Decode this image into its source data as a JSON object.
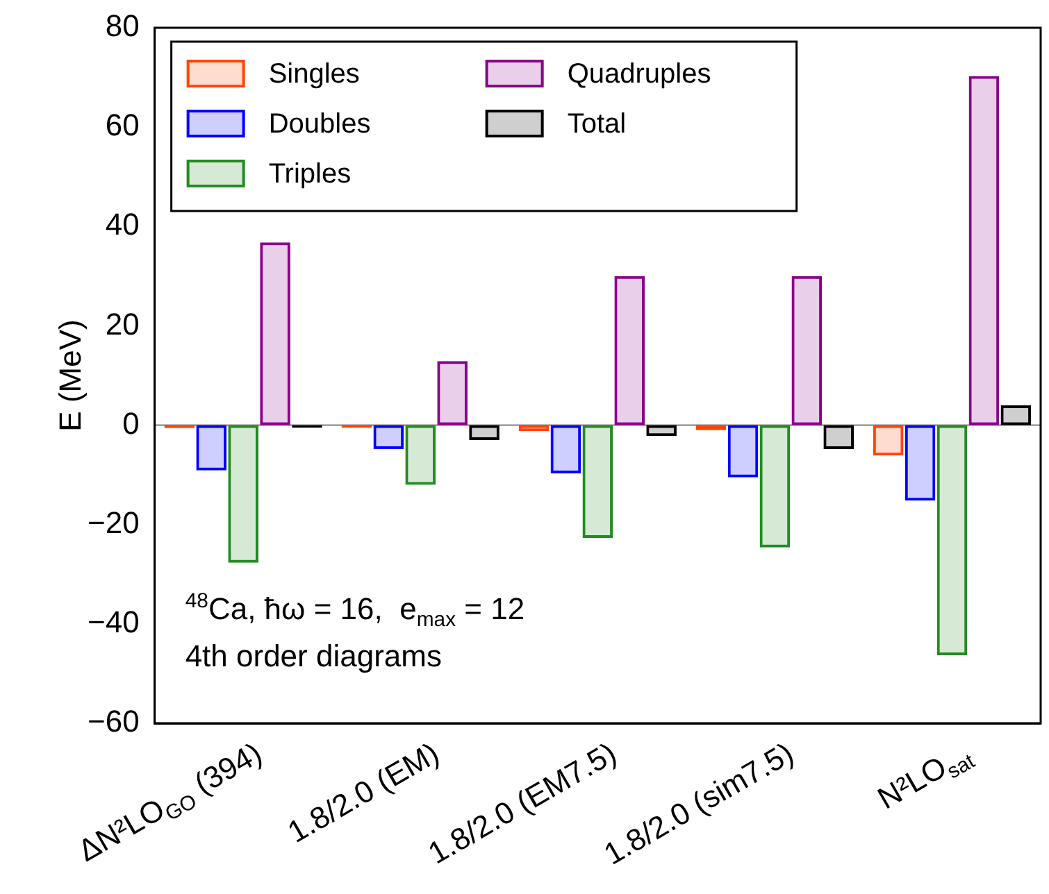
{
  "chart_data": {
    "type": "bar",
    "categories": [
      "ΔN²LO$_{GO}$ (394)",
      "1.8/2.0 (EM)",
      "1.8/2.0 (EM7.5)",
      "1.8/2.0 (sim7.5)",
      "N²LO$_{sat}$"
    ],
    "series": [
      {
        "name": "Singles",
        "color": "#ff4500",
        "values": [
          -0.6,
          -0.5,
          -1.2,
          -1.0,
          -6.1
        ]
      },
      {
        "name": "Doubles",
        "color": "#0000ff",
        "values": [
          -9.1,
          -4.8,
          -9.7,
          -10.5,
          -15.2
        ]
      },
      {
        "name": "Triples",
        "color": "#228b22",
        "values": [
          -27.7,
          -12,
          -22.7,
          -24.6,
          -46.3
        ]
      },
      {
        "name": "Quadruples",
        "color": "#8b008b",
        "values": [
          36.8,
          12.9,
          30,
          30,
          70.3
        ]
      },
      {
        "name": "Total",
        "color": "#000000",
        "values": [
          -0.5,
          -3,
          -2.2,
          -4.8,
          4
        ]
      }
    ],
    "ylabel": "E (MeV)",
    "ylim": [
      -60,
      80
    ],
    "yticks": [
      -60,
      -40,
      -20,
      0,
      20,
      40,
      60,
      80
    ],
    "ref_lines": [
      {
        "axis": "y",
        "value": 0,
        "color": "#808080"
      }
    ],
    "annotations": [
      "$^{48}$Ca, ħω = 16,  e$_{max}$ = 12",
      "4th order diagrams"
    ],
    "legend": "top left",
    "grid": false
  }
}
